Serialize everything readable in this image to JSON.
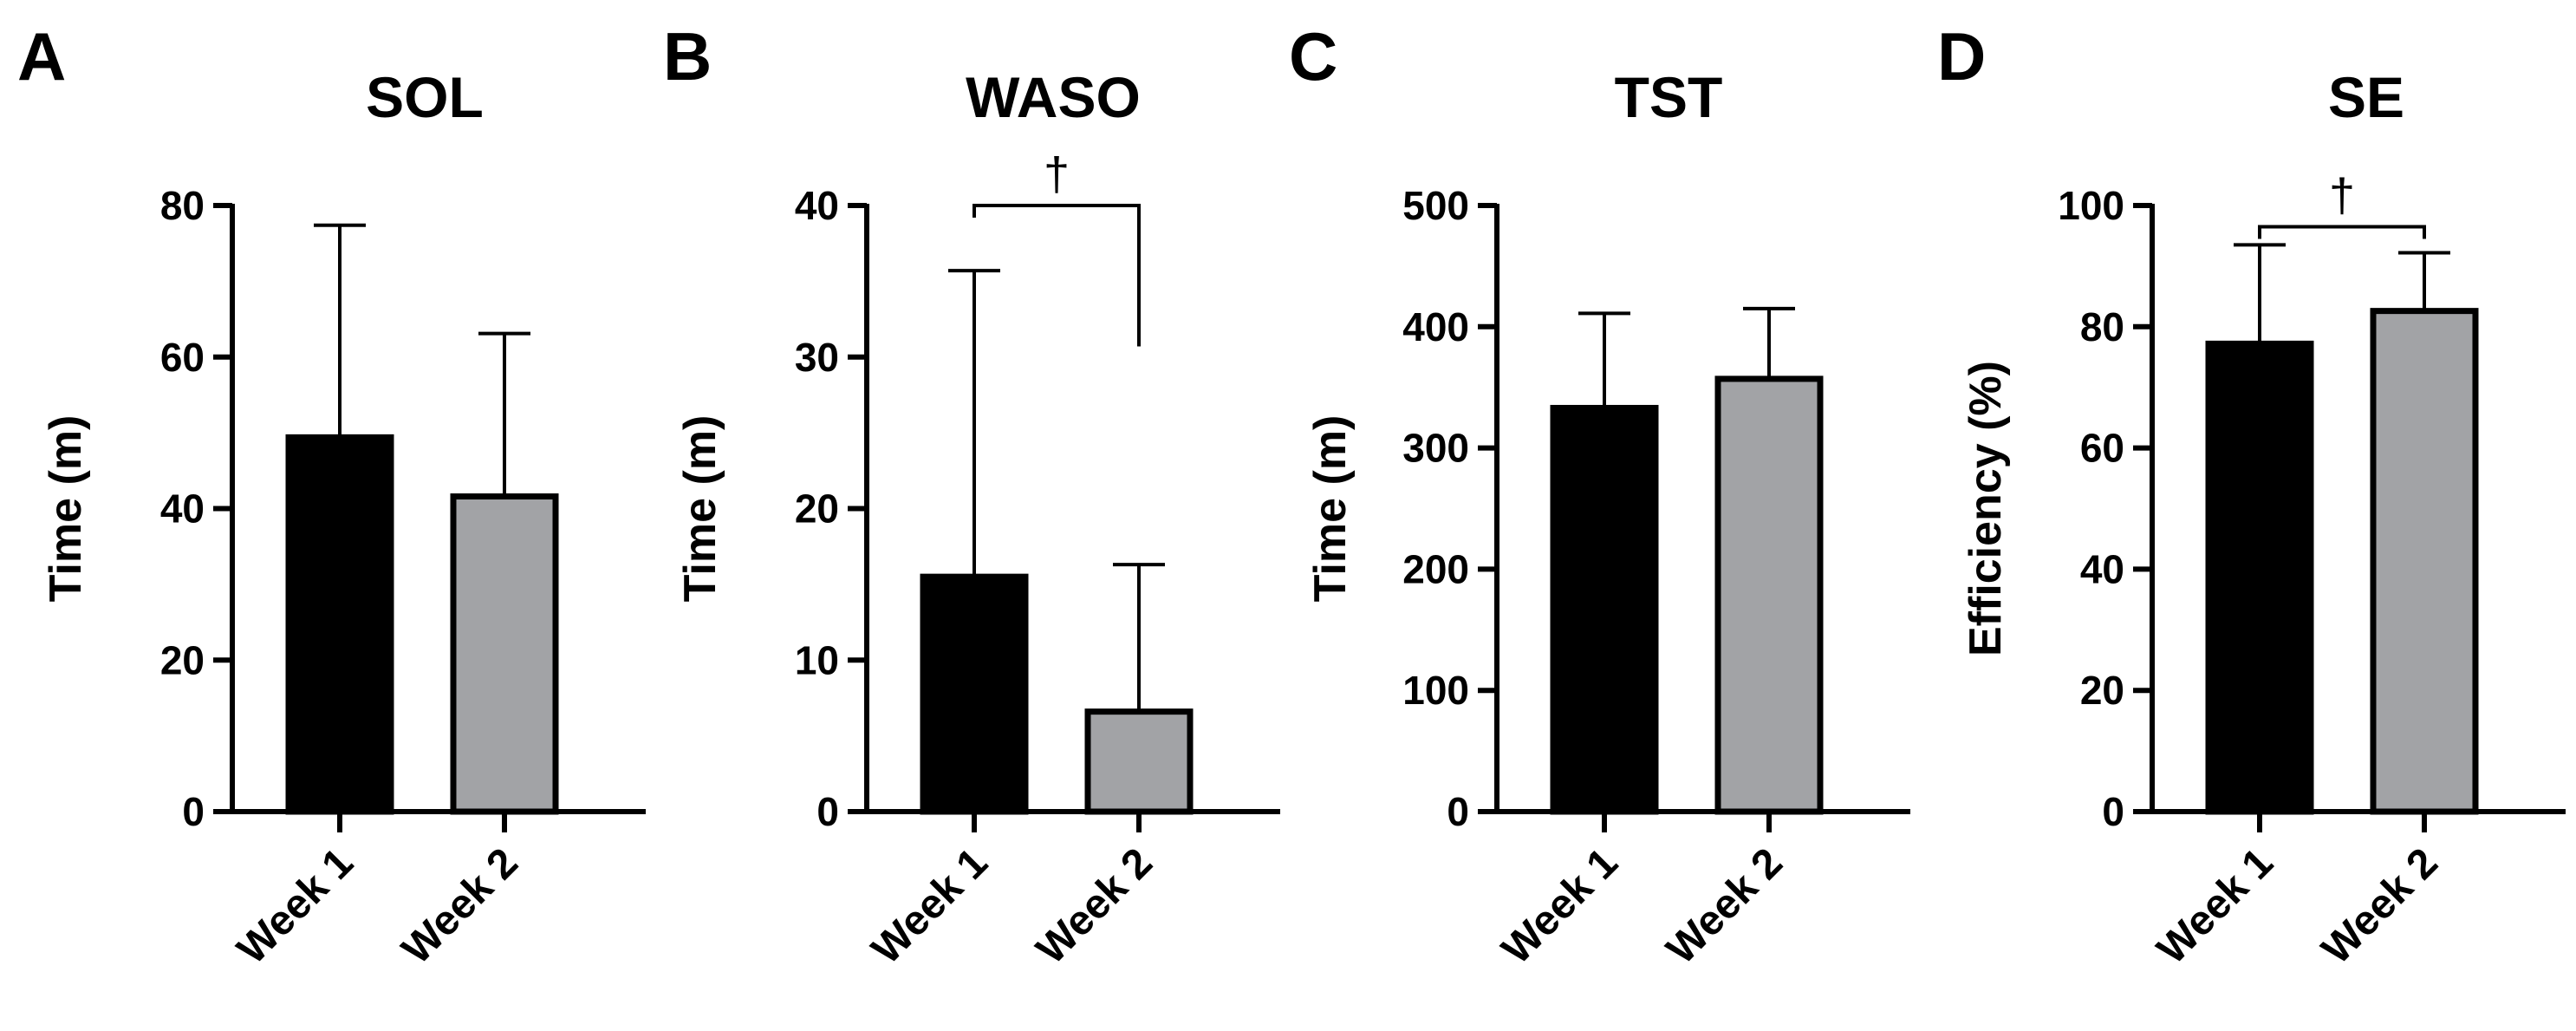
{
  "colors": {
    "week1": "#000000",
    "week2": "#a2a3a6",
    "stroke": "#000000"
  },
  "chart_data": [
    {
      "type": "bar",
      "panel": "A",
      "title": "SOL",
      "xlabel": "",
      "ylabel": "Time (m)",
      "categories": [
        "Week 1",
        "Week 2"
      ],
      "values": [
        49.4,
        41.6
      ],
      "errors": [
        28.0,
        21.5
      ],
      "yticks": [
        "0",
        "20",
        "40",
        "60",
        "80"
      ],
      "ylim": [
        0,
        80
      ],
      "significance": null
    },
    {
      "type": "bar",
      "panel": "B",
      "title": "WASO",
      "xlabel": "",
      "ylabel": "Time (m)",
      "categories": [
        "Week 1",
        "Week 2"
      ],
      "values": [
        15.5,
        6.6
      ],
      "errors": [
        20.2,
        9.7
      ],
      "yticks": [
        "0",
        "10",
        "20",
        "30",
        "40"
      ],
      "ylim": [
        0,
        40
      ],
      "significance": {
        "symbol": "†",
        "left_y": 39.2,
        "right_y": 30.7
      }
    },
    {
      "type": "bar",
      "panel": "C",
      "title": "TST",
      "xlabel": "",
      "ylabel": "Time (m)",
      "categories": [
        "Week 1",
        "Week 2"
      ],
      "values": [
        333,
        357
      ],
      "errors": [
        78,
        58
      ],
      "yticks": [
        "0",
        "100",
        "200",
        "300",
        "400",
        "500"
      ],
      "ylim": [
        0,
        500
      ],
      "significance": null
    },
    {
      "type": "bar",
      "panel": "D",
      "title": "SE",
      "xlabel": "",
      "ylabel": "Efficiency (%)",
      "categories": [
        "Week 1",
        "Week 2"
      ],
      "values": [
        77.2,
        82.6
      ],
      "errors": [
        16.3,
        9.6
      ],
      "yticks": [
        "0",
        "20",
        "40",
        "60",
        "80",
        "100"
      ],
      "ylim": [
        0,
        100
      ],
      "significance": {
        "symbol": "†",
        "left_y": 94.5,
        "right_y": 94.5
      }
    }
  ]
}
